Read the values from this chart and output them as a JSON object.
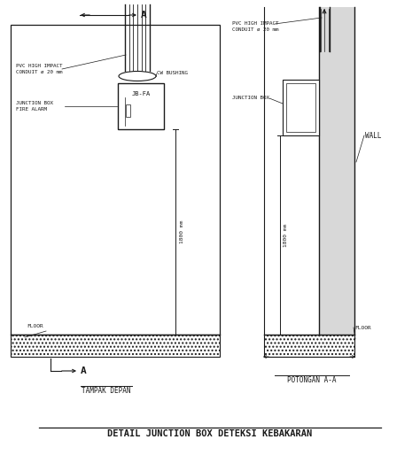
{
  "bg_color": "#ffffff",
  "line_color": "#1a1a1a",
  "title": "DETAIL JUNCTION BOX DETEKSI KEBAKARAN",
  "tampak_depan_label": "TAMPAK DEPAN",
  "potongan_label": "POTONGAN A-A",
  "section_A_label": "A",
  "pvc_label_front": "PVC HIGH IMPACT\nCONDUIT ø 20 mm",
  "pvc_label_side": "PVC HIGH IMPACT\nCONDUIT ø 20 mm",
  "cw_bushing_label": "CW BUSHING",
  "jb_label": "JB-FA",
  "junction_box_label_front": "JUNCTION BOX\nFIRE ALARM",
  "junction_box_label_side": "JUNCTION BOX",
  "wall_label": "WALL",
  "floor_label_front": "FLOOR",
  "floor_label_side": "FLOOR",
  "dim_label": "1800 mm"
}
